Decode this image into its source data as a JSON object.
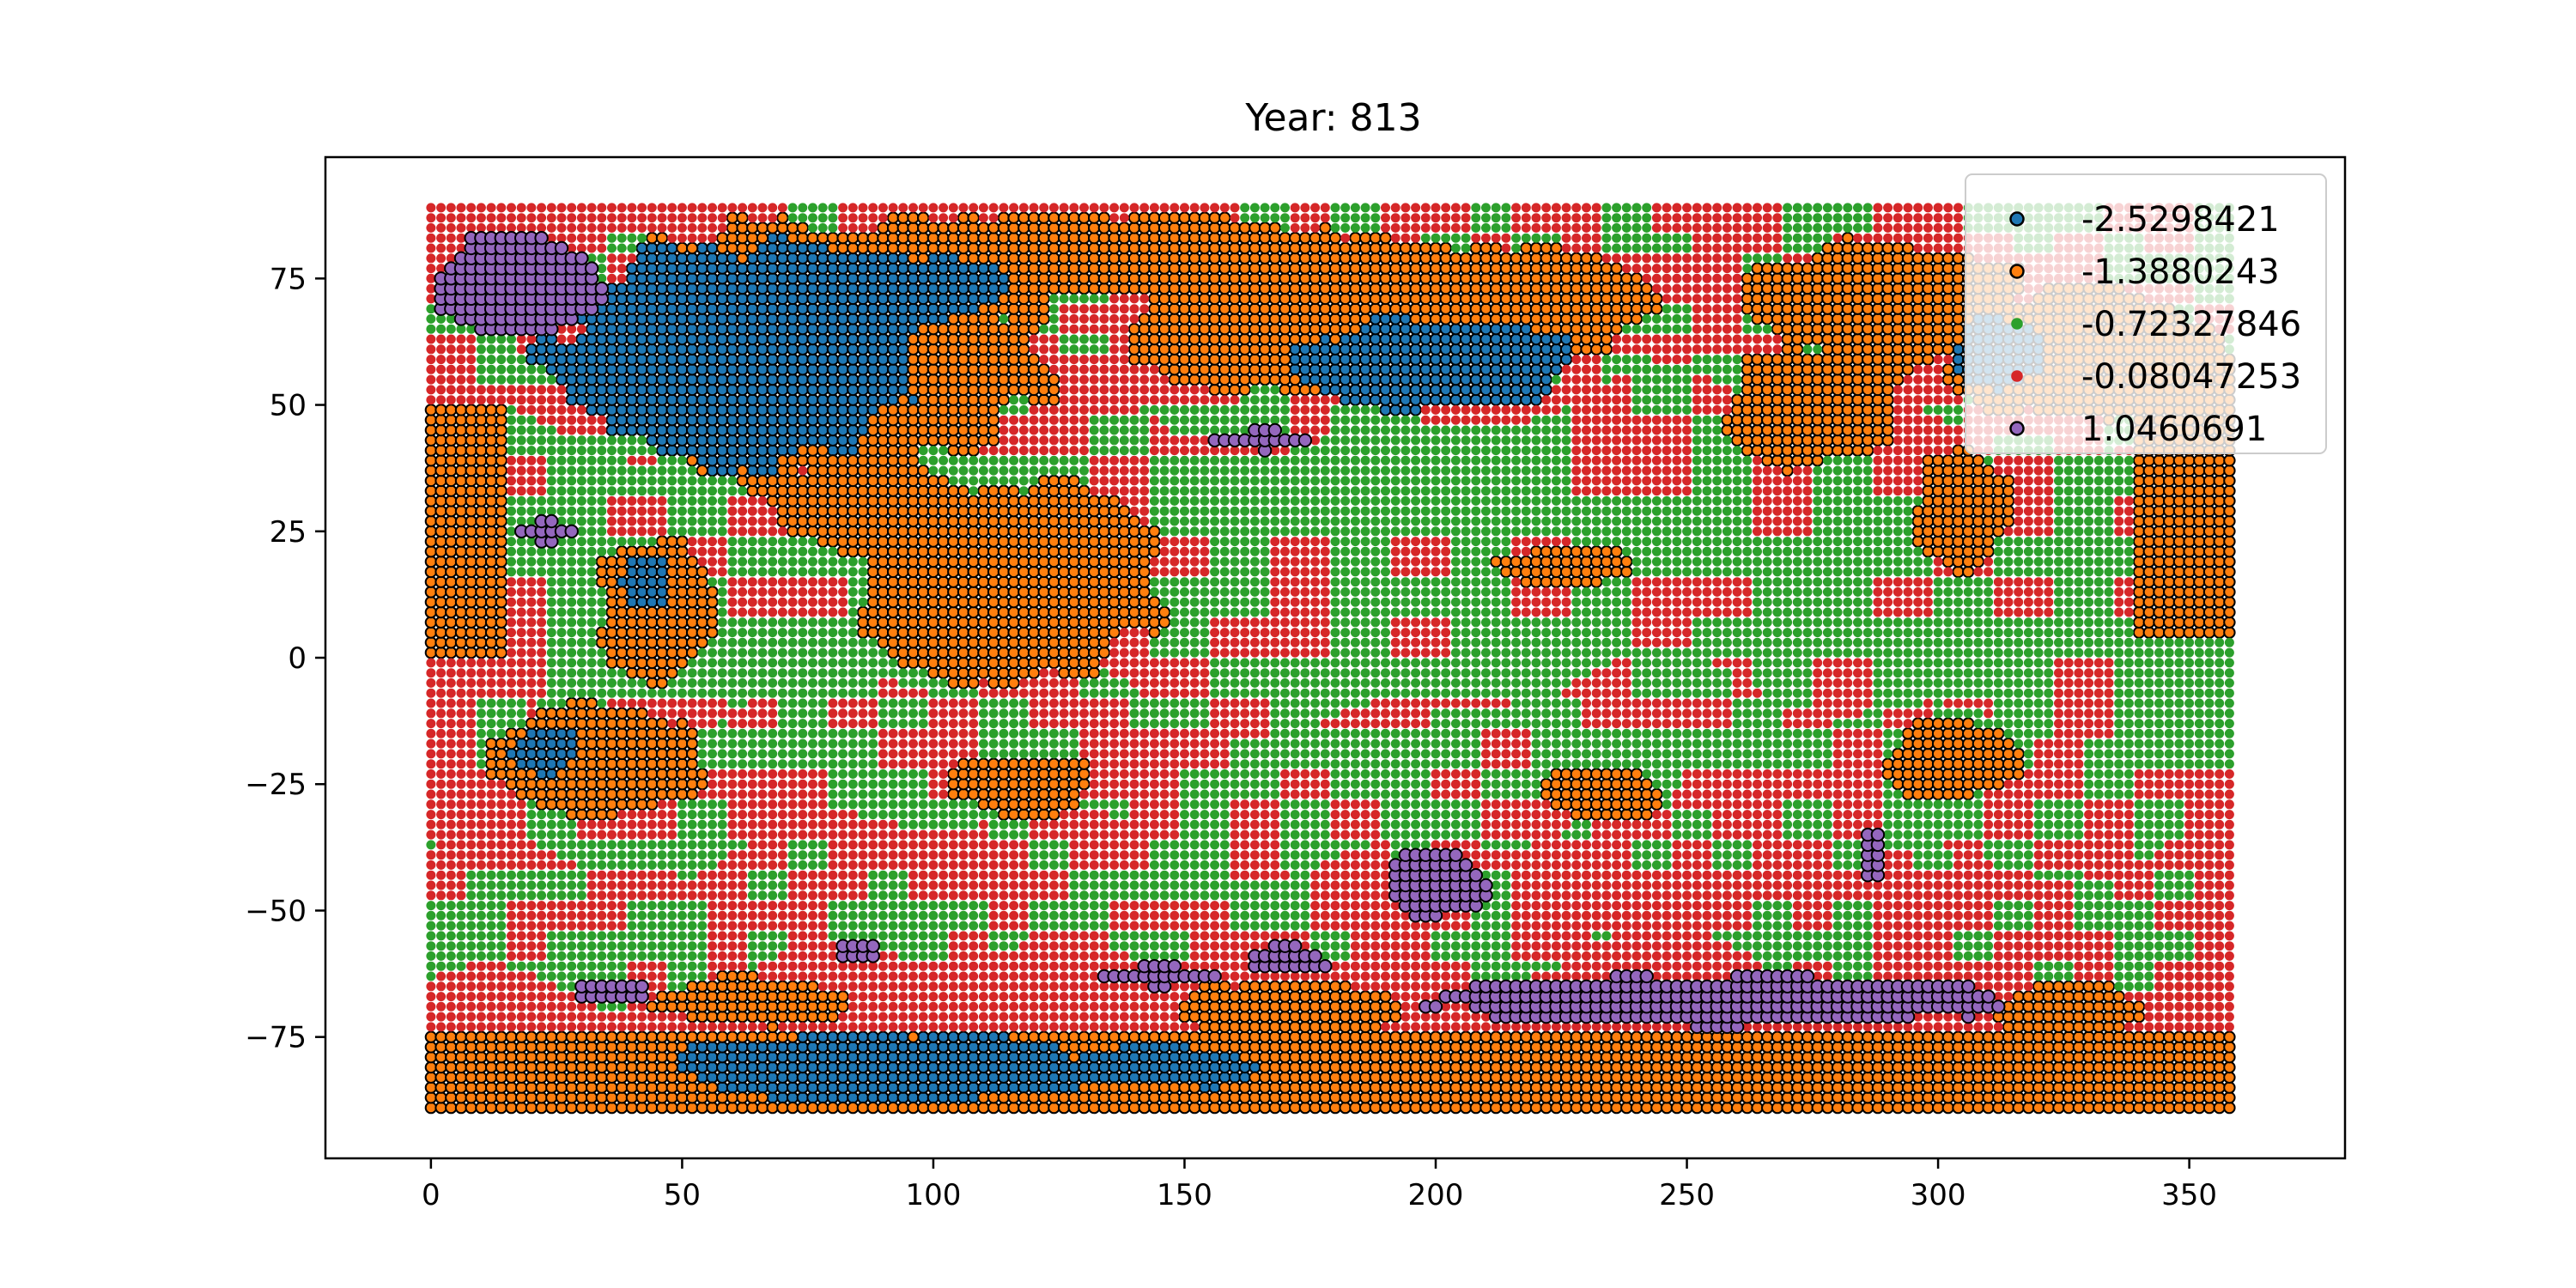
{
  "chart_data": {
    "type": "scatter",
    "title": "Year: 813",
    "xlabel": "",
    "ylabel": "",
    "xlim": [
      -21,
      381
    ],
    "ylim": [
      -99,
      99
    ],
    "x_ticks": [
      0,
      50,
      100,
      150,
      200,
      250,
      300,
      350
    ],
    "y_ticks": [
      -75,
      -50,
      -25,
      0,
      25,
      50,
      75
    ],
    "grid": false,
    "legend_position": "top-right",
    "grid_step": {
      "x": 2,
      "y": 2
    },
    "x_range": [
      0,
      358
    ],
    "y_range": [
      -89,
      89
    ],
    "classes": [
      {
        "label": "-2.5298421",
        "color": "#1f77b4",
        "edge": "#000000"
      },
      {
        "label": "-1.3880243",
        "color": "#ff7f0e",
        "edge": "#000000"
      },
      {
        "label": "-0.72327846",
        "color": "#2ca02c",
        "edge": "#2ca02c"
      },
      {
        "label": "-0.08047253",
        "color": "#d62728",
        "edge": "#d62728"
      },
      {
        "label": "1.0460691",
        "color": "#9467bd",
        "edge": "#000000"
      }
    ],
    "regions": [
      {
        "class": 1,
        "shape": "rect",
        "x": [
          0,
          360
        ],
        "y": [
          -90,
          -74
        ]
      },
      {
        "class": 1,
        "shape": "rect",
        "x": [
          0,
          14
        ],
        "y": [
          0,
          50
        ]
      },
      {
        "class": 1,
        "shape": "rect",
        "x": [
          340,
          360
        ],
        "y": [
          5,
          60
        ]
      },
      {
        "class": 1,
        "shape": "ellipse",
        "cx": 75,
        "cy": 60,
        "rx": 48,
        "ry": 26
      },
      {
        "class": 1,
        "shape": "ellipse",
        "cx": 130,
        "cy": 80,
        "rx": 60,
        "ry": 8
      },
      {
        "class": 1,
        "shape": "ellipse",
        "cx": 170,
        "cy": 65,
        "rx": 30,
        "ry": 13
      },
      {
        "class": 1,
        "shape": "ellipse",
        "cx": 205,
        "cy": 70,
        "rx": 38,
        "ry": 12
      },
      {
        "class": 1,
        "shape": "ellipse",
        "cx": 290,
        "cy": 70,
        "rx": 30,
        "ry": 12
      },
      {
        "class": 1,
        "shape": "ellipse",
        "cx": 275,
        "cy": 50,
        "rx": 18,
        "ry": 12
      },
      {
        "class": 1,
        "shape": "ellipse",
        "cx": 330,
        "cy": 60,
        "rx": 28,
        "ry": 13
      },
      {
        "class": 1,
        "shape": "ellipse",
        "cx": 115,
        "cy": 15,
        "rx": 30,
        "ry": 20
      },
      {
        "class": 1,
        "shape": "ellipse",
        "cx": 87,
        "cy": 30,
        "rx": 20,
        "ry": 9
      },
      {
        "class": 1,
        "shape": "ellipse",
        "cx": 34,
        "cy": -20,
        "rx": 22,
        "ry": 11
      },
      {
        "class": 1,
        "shape": "ellipse",
        "cx": 45,
        "cy": 10,
        "rx": 12,
        "ry": 14
      },
      {
        "class": 1,
        "shape": "ellipse",
        "cx": 117,
        "cy": -25,
        "rx": 15,
        "ry": 6
      },
      {
        "class": 1,
        "shape": "ellipse",
        "cx": 226,
        "cy": 18,
        "rx": 13,
        "ry": 4
      },
      {
        "class": 1,
        "shape": "ellipse",
        "cx": 233,
        "cy": -27,
        "rx": 12,
        "ry": 6
      },
      {
        "class": 1,
        "shape": "ellipse",
        "cx": 303,
        "cy": -20,
        "rx": 14,
        "ry": 8
      },
      {
        "class": 1,
        "shape": "ellipse",
        "cx": 305,
        "cy": 30,
        "rx": 10,
        "ry": 12
      },
      {
        "class": 1,
        "shape": "ellipse",
        "cx": 325,
        "cy": -70,
        "rx": 14,
        "ry": 6
      },
      {
        "class": 1,
        "shape": "ellipse",
        "cx": 170,
        "cy": -70,
        "rx": 22,
        "ry": 6
      },
      {
        "class": 1,
        "shape": "ellipse",
        "cx": 65,
        "cy": -68,
        "rx": 20,
        "ry": 5
      },
      {
        "class": 0,
        "shape": "ellipse",
        "cx": 60,
        "cy": 60,
        "rx": 36,
        "ry": 22
      },
      {
        "class": 0,
        "shape": "ellipse",
        "cx": 88,
        "cy": 73,
        "rx": 26,
        "ry": 7
      },
      {
        "class": 0,
        "shape": "ellipse",
        "cx": 200,
        "cy": 58,
        "rx": 28,
        "ry": 9
      },
      {
        "class": 0,
        "shape": "ellipse",
        "cx": 90,
        "cy": -81,
        "rx": 42,
        "ry": 7
      },
      {
        "class": 0,
        "shape": "ellipse",
        "cx": 145,
        "cy": -81,
        "rx": 23,
        "ry": 4
      },
      {
        "class": 0,
        "shape": "ellipse",
        "cx": 23,
        "cy": -18,
        "rx": 7,
        "ry": 5
      },
      {
        "class": 0,
        "shape": "ellipse",
        "cx": 43,
        "cy": 15,
        "rx": 5,
        "ry": 6
      },
      {
        "class": 0,
        "shape": "ellipse",
        "cx": 312,
        "cy": 60,
        "rx": 9,
        "ry": 7
      },
      {
        "class": 4,
        "shape": "ellipse",
        "cx": 18,
        "cy": 74,
        "rx": 17,
        "ry": 10
      },
      {
        "class": 4,
        "shape": "ellipse",
        "cx": 23,
        "cy": 25,
        "rx": 5,
        "ry": 2
      },
      {
        "class": 4,
        "shape": "ellipse",
        "cx": 165,
        "cy": 43,
        "rx": 10,
        "ry": 2
      },
      {
        "class": 4,
        "shape": "ellipse",
        "cx": 200,
        "cy": -45,
        "rx": 10,
        "ry": 7
      },
      {
        "class": 4,
        "shape": "ellipse",
        "cx": 255,
        "cy": -68,
        "rx": 58,
        "ry": 5
      },
      {
        "class": 4,
        "shape": "ellipse",
        "cx": 36,
        "cy": -66,
        "rx": 8,
        "ry": 2
      },
      {
        "class": 4,
        "shape": "ellipse",
        "cx": 145,
        "cy": -63,
        "rx": 13,
        "ry": 2
      },
      {
        "class": 4,
        "shape": "ellipse",
        "cx": 170,
        "cy": -60,
        "rx": 8,
        "ry": 3
      },
      {
        "class": 4,
        "shape": "ellipse",
        "cx": 287,
        "cy": -40,
        "rx": 2,
        "ry": 6
      },
      {
        "class": 4,
        "shape": "ellipse",
        "cx": 85,
        "cy": -58,
        "rx": 4,
        "ry": 2
      }
    ],
    "background_bands": [
      {
        "y": [
          -89,
          -60
        ],
        "class": 3
      },
      {
        "y": [
          -60,
          -35
        ],
        "class": 3
      },
      {
        "y": [
          -35,
          0
        ],
        "class": 2
      },
      {
        "y": [
          0,
          50
        ],
        "class": 2
      },
      {
        "y": [
          50,
          89
        ],
        "class": 3
      }
    ]
  }
}
